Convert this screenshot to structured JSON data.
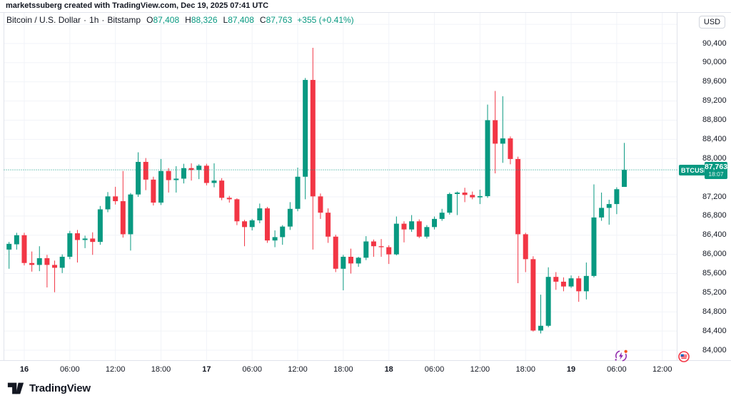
{
  "header": {
    "attribution": "marketssuberg created with TradingView.com, Dec 19, 2025 07:41 UTC"
  },
  "legend": {
    "symbol_title": "Bitcoin / U.S. Dollar",
    "separator": "·",
    "interval": "1h",
    "exchange": "Bitstamp",
    "ohlc": [
      {
        "label": "O",
        "value": "87,408"
      },
      {
        "label": "H",
        "value": "88,326"
      },
      {
        "label": "L",
        "value": "87,408"
      },
      {
        "label": "C",
        "value": "87,763"
      }
    ],
    "change": "+355 (+0.41%)"
  },
  "price_axis": {
    "currency_button": "USD"
  },
  "price_badge": {
    "symbol": "BTCUSD",
    "price": "87,763",
    "countdown": "18:07",
    "value": 87763
  },
  "footer": {
    "logo_text": "TradingView"
  },
  "icons": {
    "stream": "live-stream-refresh-icon",
    "flag": "us-economic-event-icon"
  },
  "colors": {
    "up": "#089981",
    "down": "#f23645",
    "grid": "#f1f3f8",
    "border": "#e0e3eb",
    "text": "#131722",
    "badge_bg": "#089981",
    "price_line": "#089981",
    "background": "#ffffff"
  },
  "chart_data": {
    "type": "candlestick",
    "symbol": "BTCUSD",
    "exchange": "Bitstamp",
    "interval": "1h",
    "first_candle_time": "Dec 15 2025 21:00 UTC (leftmost candle partially cut off)",
    "last_candle_time": "Dec 19 2025 07:00 UTC",
    "current_price": 87763,
    "ylim": [
      83790,
      91055
    ],
    "grid": true,
    "candles_format": [
      "open",
      "high",
      "low",
      "close"
    ],
    "candles": [
      [
        86150,
        86340,
        85740,
        86160
      ],
      [
        86100,
        86260,
        85700,
        86220
      ],
      [
        86210,
        86450,
        86100,
        86400
      ],
      [
        86400,
        86450,
        85770,
        85820
      ],
      [
        85820,
        86060,
        85640,
        85780
      ],
      [
        85780,
        86170,
        85650,
        85920
      ],
      [
        85920,
        85990,
        85310,
        85780
      ],
      [
        85780,
        85870,
        85210,
        85720
      ],
      [
        85720,
        86000,
        85610,
        85950
      ],
      [
        85950,
        86490,
        85900,
        86440
      ],
      [
        86440,
        86510,
        85830,
        86300
      ],
      [
        86300,
        86390,
        86130,
        86330
      ],
      [
        86330,
        86460,
        85990,
        86260
      ],
      [
        86260,
        87010,
        86200,
        86940
      ],
      [
        86940,
        87300,
        86880,
        87210
      ],
      [
        87210,
        87410,
        87040,
        87110
      ],
      [
        87110,
        87740,
        86350,
        86420
      ],
      [
        86420,
        87280,
        86080,
        87250
      ],
      [
        87250,
        88130,
        87200,
        87930
      ],
      [
        87930,
        88010,
        87340,
        87560
      ],
      [
        87560,
        87620,
        87020,
        87080
      ],
      [
        87080,
        87990,
        87030,
        87740
      ],
      [
        87740,
        87800,
        87290,
        87550
      ],
      [
        87550,
        87840,
        87290,
        87580
      ],
      [
        87580,
        87890,
        87480,
        87800
      ],
      [
        87800,
        87900,
        87540,
        87760
      ],
      [
        87760,
        87880,
        87570,
        87850
      ],
      [
        87850,
        87890,
        87440,
        87490
      ],
      [
        87490,
        87900,
        87400,
        87540
      ],
      [
        87540,
        87590,
        87130,
        87180
      ],
      [
        87180,
        87220,
        87080,
        87150
      ],
      [
        87150,
        87170,
        86610,
        86690
      ],
      [
        86690,
        86720,
        86170,
        86570
      ],
      [
        86570,
        86740,
        86500,
        86710
      ],
      [
        86710,
        87060,
        86650,
        86960
      ],
      [
        86960,
        86990,
        86240,
        86290
      ],
      [
        86290,
        86500,
        86150,
        86360
      ],
      [
        86360,
        86610,
        86200,
        86580
      ],
      [
        86580,
        87090,
        86510,
        86950
      ],
      [
        86950,
        87810,
        86900,
        87620
      ],
      [
        87620,
        89680,
        87150,
        89640
      ],
      [
        89640,
        90310,
        86100,
        87210
      ],
      [
        87210,
        87270,
        86740,
        86870
      ],
      [
        86870,
        86960,
        86240,
        86370
      ],
      [
        86370,
        86410,
        85630,
        85700
      ],
      [
        85700,
        85990,
        85250,
        85950
      ],
      [
        85950,
        86120,
        85600,
        85810
      ],
      [
        85810,
        85950,
        85740,
        85930
      ],
      [
        85930,
        86380,
        85880,
        86270
      ],
      [
        86270,
        86310,
        85950,
        86170
      ],
      [
        86170,
        86320,
        85950,
        86150
      ],
      [
        86150,
        86190,
        85800,
        86000
      ],
      [
        86000,
        86790,
        85980,
        86640
      ],
      [
        86640,
        86690,
        86250,
        86520
      ],
      [
        86520,
        86820,
        86470,
        86690
      ],
      [
        86690,
        86730,
        86340,
        86370
      ],
      [
        86370,
        86610,
        86330,
        86570
      ],
      [
        86570,
        86790,
        86520,
        86740
      ],
      [
        86740,
        86950,
        86700,
        86870
      ],
      [
        86870,
        87290,
        86830,
        87260
      ],
      [
        87260,
        87310,
        86820,
        87290
      ],
      [
        87290,
        87390,
        87090,
        87240
      ],
      [
        87240,
        87310,
        87150,
        87190
      ],
      [
        87190,
        87350,
        87050,
        87215
      ],
      [
        87215,
        89125,
        87180,
        88800
      ],
      [
        88800,
        89410,
        87690,
        88310
      ],
      [
        88310,
        89300,
        87910,
        88420
      ],
      [
        88420,
        88460,
        87880,
        87990
      ],
      [
        87990,
        88040,
        85400,
        86420
      ],
      [
        86420,
        86450,
        85630,
        85900
      ],
      [
        85900,
        85960,
        84390,
        84410
      ],
      [
        84410,
        85160,
        84350,
        84510
      ],
      [
        84510,
        85730,
        84480,
        85530
      ],
      [
        85530,
        85630,
        85260,
        85430
      ],
      [
        85430,
        85520,
        85230,
        85330
      ],
      [
        85330,
        85560,
        85300,
        85500
      ],
      [
        85500,
        85550,
        85010,
        85230
      ],
      [
        85230,
        85830,
        85060,
        85550
      ],
      [
        85550,
        87460,
        85520,
        86770
      ],
      [
        86770,
        87290,
        86700,
        86970
      ],
      [
        86970,
        87140,
        86620,
        87050
      ],
      [
        87050,
        87400,
        86840,
        87360
      ],
      [
        87408,
        88326,
        87408,
        87763
      ]
    ],
    "y_ticks": [
      {
        "value": 90800,
        "label": ""
      },
      {
        "value": 90400,
        "label": "90,400"
      },
      {
        "value": 90000,
        "label": "90,000"
      },
      {
        "value": 89600,
        "label": "89,600"
      },
      {
        "value": 89200,
        "label": "89,200"
      },
      {
        "value": 88800,
        "label": "88,800"
      },
      {
        "value": 88400,
        "label": "88,400"
      },
      {
        "value": 88000,
        "label": "88,000"
      },
      {
        "value": 87600,
        "label": ""
      },
      {
        "value": 87200,
        "label": "87,200"
      },
      {
        "value": 86800,
        "label": "86,800"
      },
      {
        "value": 86400,
        "label": "86,400"
      },
      {
        "value": 86000,
        "label": "86,000"
      },
      {
        "value": 85600,
        "label": "85,600"
      },
      {
        "value": 85200,
        "label": "85,200"
      },
      {
        "value": 84800,
        "label": "84,800"
      },
      {
        "value": 84400,
        "label": "84,400"
      },
      {
        "value": 84000,
        "label": "84,000"
      }
    ],
    "x_ticks": [
      {
        "index": 3,
        "label": "16",
        "major": true
      },
      {
        "index": 9,
        "label": "06:00",
        "major": false
      },
      {
        "index": 15,
        "label": "12:00",
        "major": false
      },
      {
        "index": 21,
        "label": "18:00",
        "major": false
      },
      {
        "index": 27,
        "label": "17",
        "major": true
      },
      {
        "index": 33,
        "label": "06:00",
        "major": false
      },
      {
        "index": 39,
        "label": "12:00",
        "major": false
      },
      {
        "index": 45,
        "label": "18:00",
        "major": false
      },
      {
        "index": 51,
        "label": "18",
        "major": true
      },
      {
        "index": 57,
        "label": "06:00",
        "major": false
      },
      {
        "index": 63,
        "label": "12:00",
        "major": false
      },
      {
        "index": 69,
        "label": "18:00",
        "major": false
      },
      {
        "index": 75,
        "label": "19",
        "major": true
      },
      {
        "index": 81,
        "label": "06:00",
        "major": false
      },
      {
        "index": 87,
        "label": "12:00",
        "major": false
      }
    ]
  }
}
